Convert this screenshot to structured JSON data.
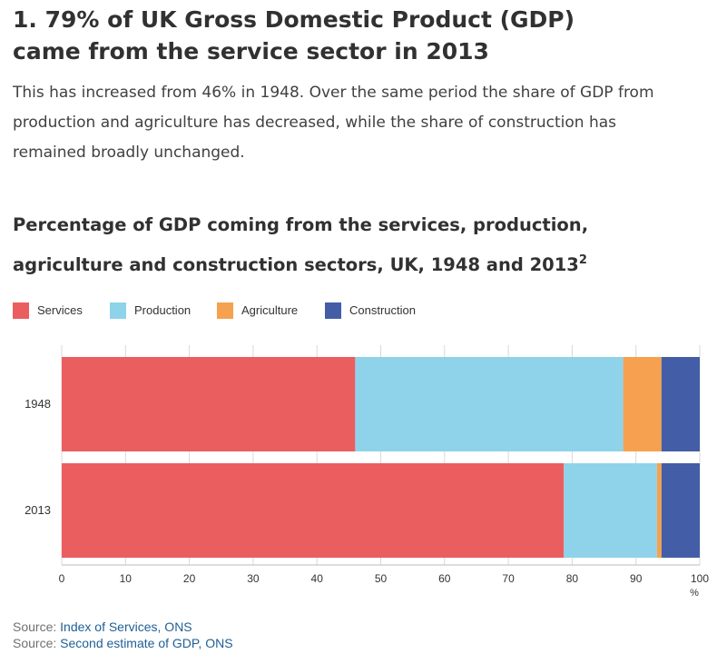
{
  "headline": "1. 79% of UK Gross Domestic Product (GDP) came from the service sector in 2013",
  "intro": "This has increased from 46% in 1948. Over the same period the share of GDP from production and agriculture has decreased, while the share of construction has remained broadly unchanged.",
  "chart_title": "Percentage of GDP coming from the services, production, agriculture and construction sectors, UK, 1948 and 2013",
  "chart_title_note": "2",
  "sources": [
    {
      "prefix": "Source: ",
      "link_text": "Index of Services, ONS"
    },
    {
      "prefix": "Source: ",
      "link_text": "Second estimate of GDP, ONS"
    }
  ],
  "chart_data": {
    "type": "bar",
    "orientation": "horizontal",
    "stacked": true,
    "categories": [
      "1948",
      "2013"
    ],
    "series": [
      {
        "name": "Services",
        "color": "#eb5e60",
        "values": [
          46,
          78.7
        ]
      },
      {
        "name": "Production",
        "color": "#8ed3ea",
        "values": [
          42,
          14.6
        ]
      },
      {
        "name": "Agriculture",
        "color": "#f5a14f",
        "values": [
          6,
          0.7
        ]
      },
      {
        "name": "Construction",
        "color": "#435ea6",
        "values": [
          6,
          6
        ]
      }
    ],
    "xlim": [
      0,
      100
    ],
    "xticks": [
      0,
      10,
      20,
      30,
      40,
      50,
      60,
      70,
      80,
      90,
      100
    ],
    "xunit": "%",
    "grid": true,
    "legend": "top-left"
  }
}
